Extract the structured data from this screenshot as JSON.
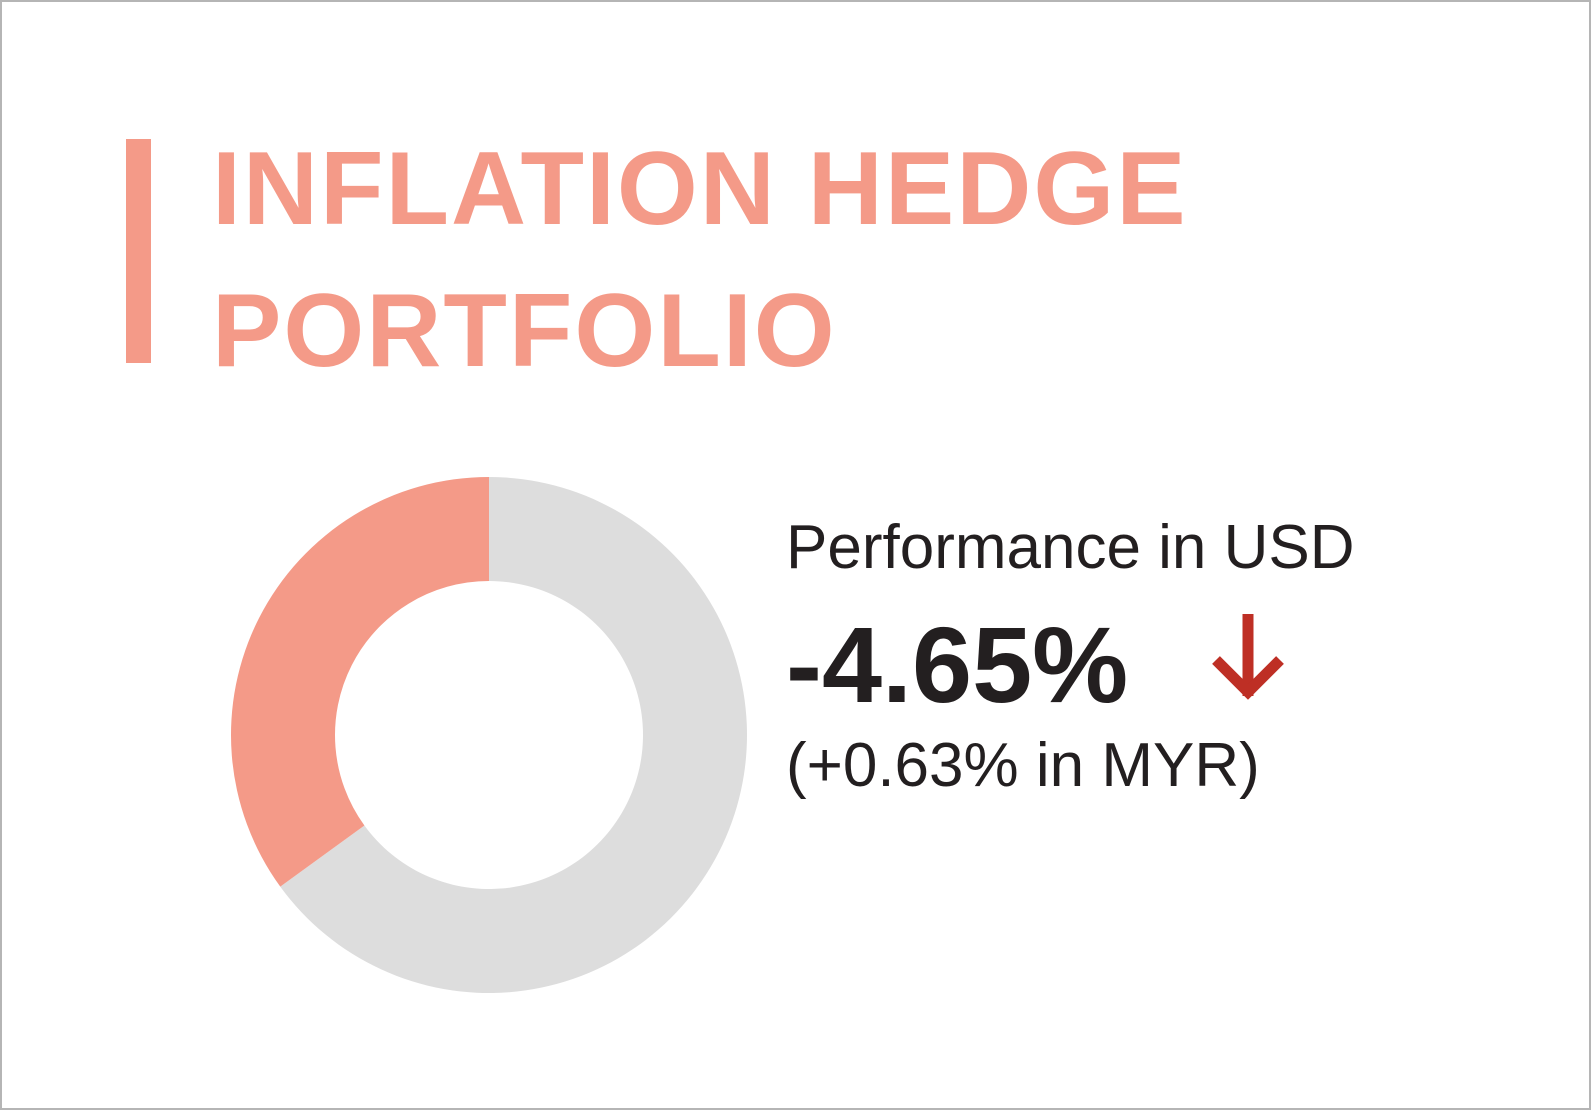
{
  "chart_data": {
    "type": "pie",
    "title": "INFLATION HEDGE PORTFOLIO",
    "values": [
      65,
      35
    ],
    "colors": [
      "#dddddd",
      "#f49a88"
    ],
    "donut": true,
    "annotations": [
      "Performance in USD",
      "-4.65%",
      "(+0.63% in MYR)"
    ]
  }
}
